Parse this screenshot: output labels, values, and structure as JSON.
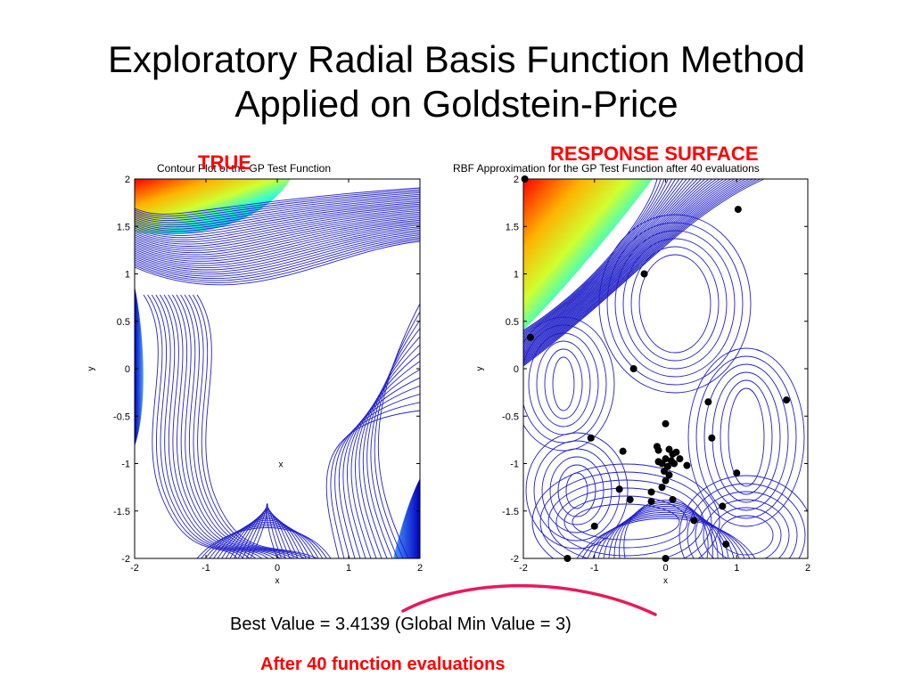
{
  "slide": {
    "title_line1": "Exploratory Radial Basis Function Method",
    "title_line2": "Applied on Goldstein-Price",
    "label_true": "TRUE",
    "label_response": "RESPONSE SURFACE",
    "best_value_text": "Best Value = 3.4139 (Global Min Value = 3)",
    "after_evals_text": "After 40 function evaluations",
    "highlight_color": "#e8195a",
    "label_color": "#ff0000"
  },
  "chart_data": [
    {
      "type": "contour",
      "title": "Contour Plot of the GP Test Function",
      "xlabel": "x",
      "ylabel": "y",
      "xlim": [
        -2,
        2
      ],
      "ylim": [
        -2,
        2
      ],
      "xticks": [
        "-2",
        "-1",
        "0",
        "1",
        "2"
      ],
      "yticks": [
        "2",
        "1.5",
        "1",
        "0.5",
        "0",
        "-0.5",
        "-1",
        "-1.5",
        "-2"
      ],
      "annotations": [
        {
          "text": "x",
          "x": 0.05,
          "y": -1.0
        }
      ],
      "colormap": "jet"
    },
    {
      "type": "contour",
      "title": "RBF Approximation for the GP Test Function after 40 evaluations",
      "xlabel": "x",
      "ylabel": "y",
      "xlim": [
        -2,
        2
      ],
      "ylim": [
        -2,
        2
      ],
      "xticks": [
        "-2",
        "-1",
        "0",
        "1",
        "2"
      ],
      "yticks": [
        "2",
        "1.5",
        "1",
        "0.5",
        "0",
        "-0.5",
        "-1",
        "-1.5",
        "-2"
      ],
      "colormap": "jet",
      "evaluation_points": [
        [
          -1.98,
          2.0
        ],
        [
          1.02,
          1.68
        ],
        [
          -0.3,
          1.0
        ],
        [
          -1.9,
          0.33
        ],
        [
          -0.45,
          0.0
        ],
        [
          0.6,
          -0.35
        ],
        [
          1.7,
          -0.33
        ],
        [
          0.0,
          -0.58
        ],
        [
          -1.05,
          -0.73
        ],
        [
          0.65,
          -0.73
        ],
        [
          -0.6,
          -0.87
        ],
        [
          -0.1,
          -0.86
        ],
        [
          0.05,
          -0.85
        ],
        [
          0.1,
          -0.9
        ],
        [
          0.0,
          -0.95
        ],
        [
          0.08,
          -0.97
        ],
        [
          -0.05,
          -1.0
        ],
        [
          0.03,
          -1.03
        ],
        [
          0.12,
          -1.0
        ],
        [
          -0.02,
          -1.08
        ],
        [
          0.3,
          -1.02
        ],
        [
          1.0,
          -1.1
        ],
        [
          -0.65,
          -1.27
        ],
        [
          -0.05,
          -1.25
        ],
        [
          0.1,
          -1.38
        ],
        [
          -0.5,
          -1.38
        ],
        [
          -0.2,
          -1.4
        ],
        [
          0.8,
          -1.45
        ],
        [
          0.4,
          -1.6
        ],
        [
          -1.0,
          -1.66
        ],
        [
          0.85,
          -1.85
        ],
        [
          -1.38,
          -2.0
        ],
        [
          -0.2,
          -1.3
        ],
        [
          0.15,
          -0.88
        ],
        [
          -0.1,
          -0.98
        ],
        [
          0.2,
          -0.95
        ],
        [
          -0.12,
          -0.82
        ],
        [
          0.0,
          -1.18
        ],
        [
          0.05,
          -1.12
        ],
        [
          0.0,
          -2.0
        ]
      ]
    }
  ]
}
